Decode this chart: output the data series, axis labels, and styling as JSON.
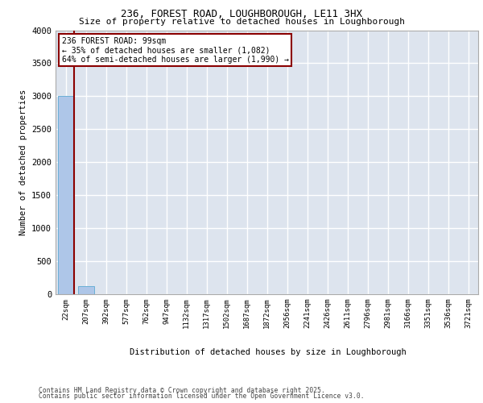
{
  "title1": "236, FOREST ROAD, LOUGHBOROUGH, LE11 3HX",
  "title2": "Size of property relative to detached houses in Loughborough",
  "xlabel": "Distribution of detached houses by size in Loughborough",
  "ylabel": "Number of detached properties",
  "categories": [
    "22sqm",
    "207sqm",
    "392sqm",
    "577sqm",
    "762sqm",
    "947sqm",
    "1132sqm",
    "1317sqm",
    "1502sqm",
    "1687sqm",
    "1872sqm",
    "2056sqm",
    "2241sqm",
    "2426sqm",
    "2611sqm",
    "2796sqm",
    "2981sqm",
    "3166sqm",
    "3351sqm",
    "3536sqm",
    "3721sqm"
  ],
  "values": [
    3000,
    120,
    0,
    0,
    0,
    0,
    0,
    0,
    0,
    0,
    0,
    0,
    0,
    0,
    0,
    0,
    0,
    0,
    0,
    0,
    0
  ],
  "bar_color": "#aec6e8",
  "bar_edge_color": "#6aafd6",
  "vline_color": "#8B0000",
  "annotation_text": "236 FOREST ROAD: 99sqm\n← 35% of detached houses are smaller (1,082)\n64% of semi-detached houses are larger (1,990) →",
  "annotation_box_color": "#8B0000",
  "ylim": [
    0,
    4000
  ],
  "yticks": [
    0,
    500,
    1000,
    1500,
    2000,
    2500,
    3000,
    3500,
    4000
  ],
  "background_color": "#dde4ee",
  "grid_color": "#ffffff",
  "footer1": "Contains HM Land Registry data © Crown copyright and database right 2025.",
  "footer2": "Contains public sector information licensed under the Open Government Licence v3.0."
}
